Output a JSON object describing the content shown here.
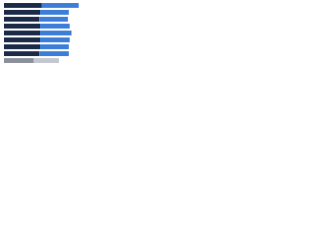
{
  "chart_data": {
    "type": "stacked-bar-horizontal",
    "categories": [
      null,
      null,
      null,
      null,
      null,
      null,
      null,
      null,
      null
    ],
    "xlim": [
      0,
      100
    ],
    "series": [
      {
        "color": "#1b2a47",
        "colors": [
          "#1b2a47",
          "#1b2a47",
          "#1b2a47",
          "#1b2a47",
          "#1b2a47",
          "#1b2a47",
          "#1b2a47",
          "#1b2a47",
          "#8a8f99"
        ],
        "values": [
          42,
          40,
          39,
          40,
          40,
          40,
          40,
          39,
          33
        ]
      },
      {
        "color": "#3b7dd8",
        "colors": [
          "#3b7dd8",
          "#3b7dd8",
          "#3b7dd8",
          "#3b7dd8",
          "#3b7dd8",
          "#3b7dd8",
          "#3b7dd8",
          "#3b7dd8",
          "#c3c7ce"
        ],
        "values": [
          41,
          32,
          32,
          33,
          35,
          33,
          32,
          33,
          28
        ]
      }
    ]
  }
}
